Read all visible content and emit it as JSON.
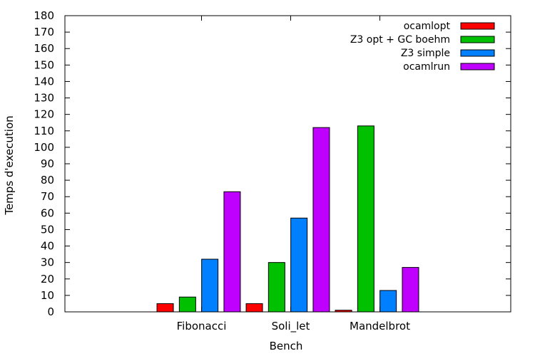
{
  "chart_data": {
    "type": "bar",
    "categories": [
      "Fibonacci",
      "Soli_let",
      "Mandelbrot"
    ],
    "series": [
      {
        "name": "ocamlopt",
        "color": "#ff0000",
        "values": [
          5,
          5,
          1
        ]
      },
      {
        "name": "Z3 opt + GC boehm",
        "color": "#00c000",
        "values": [
          9,
          30,
          113
        ]
      },
      {
        "name": "Z3 simple",
        "color": "#0080ff",
        "values": [
          32,
          57,
          13
        ]
      },
      {
        "name": "ocamlrun",
        "color": "#c000ff",
        "values": [
          73,
          112,
          27
        ]
      }
    ],
    "title": "",
    "xlabel": "Bench",
    "ylabel": "Temps d'execution",
    "ylim": [
      0,
      180
    ],
    "yticks": [
      0,
      10,
      20,
      30,
      40,
      50,
      60,
      70,
      80,
      90,
      100,
      110,
      120,
      130,
      140,
      150,
      160,
      170,
      180
    ],
    "grid": false,
    "legend_position": "top-right"
  }
}
